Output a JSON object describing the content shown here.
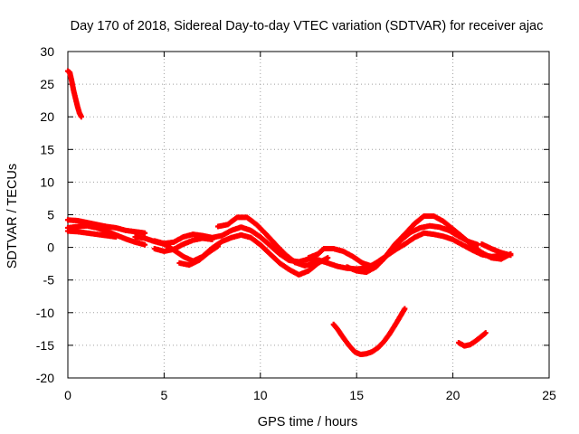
{
  "chart_data": {
    "type": "scatter",
    "title": "Day 170 of 2018, Sidereal Day-to-day VTEC variation (SDTVAR) for receiver ajac",
    "xlabel": "GPS time / hours",
    "ylabel": "SDTVAR / TECUs",
    "xlim": [
      0,
      25
    ],
    "ylim": [
      -20,
      30
    ],
    "xticks": [
      0,
      5,
      10,
      15,
      20,
      25
    ],
    "yticks": [
      -20,
      -15,
      -10,
      -5,
      0,
      5,
      10,
      15,
      20,
      25,
      30
    ],
    "grid": true,
    "color": "#ff0000",
    "series": [
      {
        "name": "arc-high-start",
        "points": [
          [
            0.0,
            27.0
          ],
          [
            0.1,
            26.8
          ],
          [
            0.2,
            25.5
          ],
          [
            0.3,
            24.0
          ],
          [
            0.4,
            22.8
          ],
          [
            0.5,
            21.6
          ],
          [
            0.6,
            20.6
          ],
          [
            0.7,
            20.0
          ]
        ]
      },
      {
        "name": "band-a",
        "points": [
          [
            0.0,
            4.2
          ],
          [
            0.5,
            4.1
          ],
          [
            1.0,
            3.8
          ],
          [
            1.5,
            3.5
          ],
          [
            2.0,
            3.2
          ],
          [
            2.5,
            3.0
          ],
          [
            3.0,
            2.6
          ],
          [
            3.5,
            2.4
          ],
          [
            4.0,
            2.2
          ]
        ]
      },
      {
        "name": "band-b",
        "points": [
          [
            0.0,
            3.0
          ],
          [
            0.5,
            3.2
          ],
          [
            1.0,
            3.3
          ],
          [
            1.5,
            3.0
          ],
          [
            2.0,
            2.5
          ],
          [
            2.5,
            1.9
          ],
          [
            3.0,
            1.3
          ],
          [
            3.5,
            0.8
          ],
          [
            4.0,
            0.4
          ]
        ]
      },
      {
        "name": "band-c",
        "points": [
          [
            0.0,
            2.5
          ],
          [
            0.5,
            2.4
          ],
          [
            1.0,
            2.2
          ],
          [
            1.5,
            2.0
          ],
          [
            2.0,
            1.8
          ],
          [
            2.5,
            1.6
          ]
        ]
      },
      {
        "name": "band-d",
        "points": [
          [
            3.5,
            1.6
          ],
          [
            4.0,
            1.4
          ],
          [
            4.5,
            0.9
          ],
          [
            5.0,
            0.5
          ],
          [
            5.5,
            -0.4
          ],
          [
            6.0,
            -1.4
          ],
          [
            6.5,
            -2.1
          ],
          [
            7.0,
            -1.4
          ],
          [
            7.5,
            -0.1
          ],
          [
            8.0,
            0.9
          ],
          [
            8.5,
            1.5
          ],
          [
            9.0,
            1.9
          ],
          [
            9.5,
            1.5
          ],
          [
            10.0,
            0.4
          ],
          [
            10.5,
            -1.0
          ],
          [
            11.0,
            -2.4
          ],
          [
            11.5,
            -3.4
          ],
          [
            12.0,
            -4.2
          ],
          [
            12.5,
            -3.6
          ],
          [
            13.0,
            -2.4
          ],
          [
            13.5,
            -1.6
          ]
        ]
      },
      {
        "name": "band-e",
        "points": [
          [
            4.5,
            1.0
          ],
          [
            5.0,
            0.6
          ],
          [
            5.5,
            0.8
          ],
          [
            6.0,
            1.6
          ],
          [
            6.5,
            2.0
          ],
          [
            7.0,
            1.8
          ],
          [
            7.5,
            1.5
          ],
          [
            8.0,
            1.8
          ],
          [
            8.5,
            2.6
          ],
          [
            9.0,
            3.1
          ],
          [
            9.5,
            2.6
          ],
          [
            10.0,
            1.6
          ],
          [
            10.5,
            0.3
          ],
          [
            11.0,
            -1.0
          ],
          [
            11.5,
            -2.0
          ],
          [
            12.0,
            -2.2
          ],
          [
            12.5,
            -1.8
          ],
          [
            13.0,
            -1.9
          ],
          [
            13.5,
            -2.4
          ],
          [
            14.0,
            -2.9
          ],
          [
            14.5,
            -3.2
          ],
          [
            15.0,
            -3.3
          ],
          [
            15.5,
            -3.2
          ],
          [
            16.0,
            -2.4
          ],
          [
            16.5,
            -1.4
          ],
          [
            17.0,
            -0.4
          ],
          [
            17.5,
            0.5
          ],
          [
            18.0,
            1.5
          ],
          [
            18.5,
            2.2
          ],
          [
            19.0,
            2.0
          ],
          [
            19.5,
            1.7
          ],
          [
            20.0,
            1.2
          ],
          [
            20.5,
            0.4
          ],
          [
            21.0,
            -0.4
          ],
          [
            21.5,
            -1.1
          ],
          [
            22.0,
            -1.4
          ],
          [
            22.5,
            -1.3
          ]
        ]
      },
      {
        "name": "band-f",
        "points": [
          [
            4.5,
            -0.2
          ],
          [
            5.0,
            -0.6
          ],
          [
            5.5,
            -0.3
          ],
          [
            6.0,
            0.5
          ],
          [
            6.5,
            1.1
          ],
          [
            7.0,
            1.4
          ],
          [
            7.5,
            1.2
          ]
        ]
      },
      {
        "name": "band-g",
        "points": [
          [
            5.8,
            -2.4
          ],
          [
            6.3,
            -2.7
          ],
          [
            6.8,
            -2.0
          ],
          [
            7.3,
            -0.8
          ],
          [
            7.8,
            0.2
          ]
        ]
      },
      {
        "name": "band-h",
        "points": [
          [
            7.8,
            3.2
          ],
          [
            8.3,
            3.5
          ],
          [
            8.8,
            4.6
          ],
          [
            9.3,
            4.6
          ],
          [
            9.8,
            3.5
          ],
          [
            10.3,
            2.0
          ],
          [
            10.8,
            0.4
          ],
          [
            11.3,
            -1.1
          ],
          [
            11.8,
            -2.3
          ],
          [
            12.3,
            -2.8
          ],
          [
            12.8,
            -2.5
          ],
          [
            13.3,
            -2.0
          ]
        ]
      },
      {
        "name": "band-i",
        "points": [
          [
            12.5,
            -1.6
          ],
          [
            13.0,
            -1.0
          ],
          [
            13.3,
            -0.2
          ],
          [
            13.8,
            -0.2
          ],
          [
            14.3,
            -0.6
          ],
          [
            14.8,
            -1.4
          ],
          [
            15.3,
            -2.4
          ],
          [
            15.8,
            -2.9
          ],
          [
            16.3,
            -2.1
          ],
          [
            16.8,
            -0.5
          ],
          [
            17.3,
            1.1
          ],
          [
            17.8,
            2.3
          ],
          [
            18.3,
            3.0
          ],
          [
            18.8,
            3.3
          ],
          [
            19.3,
            3.1
          ],
          [
            19.8,
            2.6
          ],
          [
            20.3,
            1.7
          ],
          [
            20.8,
            0.9
          ],
          [
            21.3,
            0.4
          ]
        ]
      },
      {
        "name": "band-j",
        "points": [
          [
            14.5,
            -3.0
          ],
          [
            15.0,
            -3.6
          ],
          [
            15.5,
            -3.8
          ],
          [
            16.0,
            -3.0
          ],
          [
            16.5,
            -1.4
          ],
          [
            17.0,
            0.5
          ],
          [
            17.5,
            2.0
          ],
          [
            18.0,
            3.6
          ],
          [
            18.5,
            4.8
          ],
          [
            19.0,
            4.8
          ],
          [
            19.5,
            4.0
          ],
          [
            20.0,
            2.8
          ],
          [
            20.5,
            1.6
          ],
          [
            21.0,
            0.3
          ],
          [
            21.5,
            -0.8
          ],
          [
            22.0,
            -1.6
          ],
          [
            22.5,
            -1.8
          ],
          [
            23.0,
            -1.0
          ]
        ]
      },
      {
        "name": "band-k",
        "points": [
          [
            21.5,
            0.5
          ],
          [
            22.0,
            -0.2
          ],
          [
            22.5,
            -0.8
          ],
          [
            23.0,
            -1.2
          ]
        ]
      },
      {
        "name": "arc-low-mid",
        "points": [
          [
            13.8,
            -11.8
          ],
          [
            14.0,
            -12.5
          ],
          [
            14.3,
            -13.8
          ],
          [
            14.6,
            -15.0
          ],
          [
            14.9,
            -16.0
          ],
          [
            15.2,
            -16.4
          ],
          [
            15.5,
            -16.3
          ],
          [
            15.8,
            -16.0
          ],
          [
            16.1,
            -15.4
          ],
          [
            16.4,
            -14.5
          ],
          [
            16.7,
            -13.3
          ],
          [
            17.0,
            -11.9
          ],
          [
            17.3,
            -10.4
          ],
          [
            17.5,
            -9.4
          ]
        ]
      },
      {
        "name": "arc-low-end",
        "points": [
          [
            20.3,
            -14.6
          ],
          [
            20.6,
            -15.1
          ],
          [
            20.9,
            -14.9
          ],
          [
            21.2,
            -14.3
          ],
          [
            21.5,
            -13.6
          ],
          [
            21.7,
            -13.1
          ]
        ]
      }
    ]
  }
}
